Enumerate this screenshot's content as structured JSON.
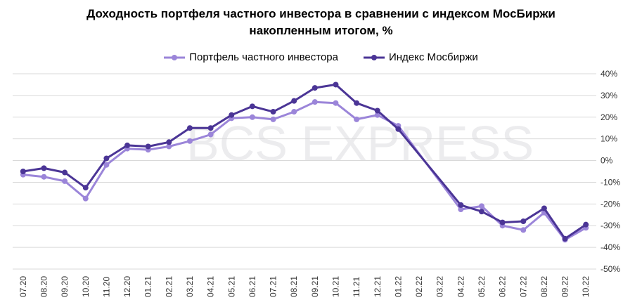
{
  "colors": {
    "portfolio": "#9b85d9",
    "index": "#4b3596",
    "grid": "#d9d9d9",
    "watermark": "#ececee"
  },
  "watermark": {
    "text": "BCS EXPRESS"
  },
  "chart_data": {
    "type": "line",
    "title": "Доходность портфеля частного инвестора в сравнении с индексом МосБиржи накопленным итогом, %",
    "title_lines": [
      "Доходность портфеля частного инвестора в сравнении с индексом МосБиржи",
      "накопленным итогом, %"
    ],
    "xlabel": "",
    "ylabel": "",
    "ylim": [
      -50,
      40
    ],
    "yticks": [
      40,
      30,
      20,
      10,
      0,
      -10,
      -20,
      -30,
      -40,
      -50
    ],
    "ytick_labels": [
      "40%",
      "30%",
      "20%",
      "10%",
      "0%",
      "-10%",
      "-20%",
      "-30%",
      "-40%",
      "-50%"
    ],
    "y_axis_position": "right",
    "grid": true,
    "legend": "top",
    "categories": [
      "07.20",
      "08.20",
      "09.20",
      "10.20",
      "11.20",
      "12.20",
      "01.21",
      "02.21",
      "03.21",
      "04.21",
      "05.21",
      "06.21",
      "07.21",
      "08.21",
      "09.21",
      "10.21",
      "11.21",
      "12.21",
      "01.22",
      "02.22",
      "03.22",
      "04.22",
      "05.22",
      "06.22",
      "07.22",
      "08.22",
      "09.22",
      "10.22"
    ],
    "series": [
      {
        "name": "Портфель частного инвестора",
        "color_key": "portfolio",
        "values": [
          -6.5,
          -7.5,
          -9.5,
          -17.5,
          -2,
          5.5,
          5,
          6.5,
          9,
          12,
          19.5,
          20,
          19,
          22.5,
          27,
          26.5,
          19,
          21,
          16,
          null,
          null,
          -22.5,
          -21,
          -30,
          -32,
          -24,
          -36.5,
          -31
        ]
      },
      {
        "name": "Индекс Мосбиржи",
        "color_key": "index",
        "values": [
          -5,
          -3.5,
          -5.5,
          -12.5,
          1,
          7,
          6.5,
          8.5,
          15,
          15,
          21,
          25,
          22.5,
          27.5,
          33.5,
          35,
          26.5,
          23,
          14.5,
          null,
          null,
          -20.5,
          -23.5,
          -28.5,
          -28,
          -22,
          -36,
          -29.5
        ]
      }
    ]
  }
}
